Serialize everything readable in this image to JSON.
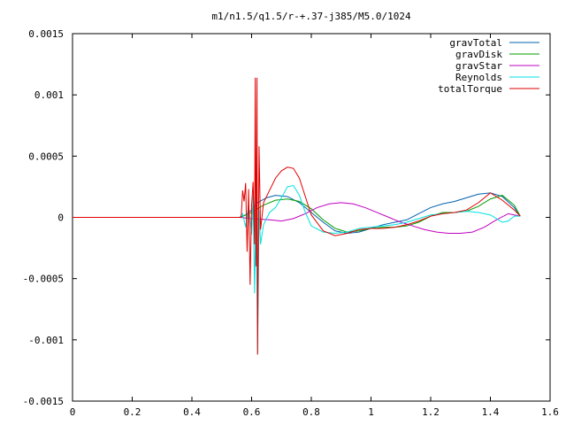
{
  "chart_data": {
    "type": "line",
    "title": "m1/n1.5/q1.5/r-+.37-j385/M5.0/1024",
    "xlabel": "",
    "ylabel": "",
    "xlim": [
      0,
      1.6
    ],
    "ylim": [
      -0.0015,
      0.0015
    ],
    "xticks": [
      0,
      0.2,
      0.4,
      0.6,
      0.8,
      1.0,
      1.2,
      1.4,
      1.6
    ],
    "xtick_labels": [
      "0",
      "0.2",
      "0.4",
      "0.6",
      "0.8",
      "1",
      "1.2",
      "1.4",
      "1.6"
    ],
    "yticks": [
      -0.0015,
      -0.001,
      -0.0005,
      0,
      0.0005,
      0.001,
      0.0015
    ],
    "ytick_labels": [
      "-0.0015",
      "-0.001",
      "-0.0005",
      "0",
      "0.0005",
      "0.001",
      "0.0015"
    ],
    "grid": false,
    "legend_position": "top-right",
    "series": [
      {
        "name": "gravTotal",
        "color": "#0060ad",
        "points": [
          [
            0,
            0
          ],
          [
            0.56,
            0
          ],
          [
            0.58,
            2e-05
          ],
          [
            0.6,
            6e-05
          ],
          [
            0.62,
            0.00012
          ],
          [
            0.65,
            0.00016
          ],
          [
            0.68,
            0.00018
          ],
          [
            0.72,
            0.00017
          ],
          [
            0.76,
            0.00012
          ],
          [
            0.8,
            4e-05
          ],
          [
            0.84,
            -4e-05
          ],
          [
            0.88,
            -0.00011
          ],
          [
            0.92,
            -0.00013
          ],
          [
            0.96,
            -0.00012
          ],
          [
            1.0,
            -9e-05
          ],
          [
            1.04,
            -6e-05
          ],
          [
            1.08,
            -4e-05
          ],
          [
            1.12,
            -2e-05
          ],
          [
            1.16,
            3e-05
          ],
          [
            1.2,
            8e-05
          ],
          [
            1.24,
            0.00011
          ],
          [
            1.28,
            0.00013
          ],
          [
            1.32,
            0.00016
          ],
          [
            1.36,
            0.00019
          ],
          [
            1.4,
            0.0002
          ],
          [
            1.44,
            0.00017
          ],
          [
            1.48,
            8e-05
          ],
          [
            1.5,
            1e-05
          ]
        ]
      },
      {
        "name": "gravDisk",
        "color": "#009e00",
        "points": [
          [
            0,
            0
          ],
          [
            0.56,
            0
          ],
          [
            0.6,
            4e-05
          ],
          [
            0.64,
            0.0001
          ],
          [
            0.68,
            0.00014
          ],
          [
            0.72,
            0.00015
          ],
          [
            0.76,
            0.00013
          ],
          [
            0.8,
            7e-05
          ],
          [
            0.84,
            -2e-05
          ],
          [
            0.88,
            -9e-05
          ],
          [
            0.92,
            -0.00012
          ],
          [
            0.96,
            -0.00011
          ],
          [
            1.0,
            -9e-05
          ],
          [
            1.04,
            -8e-05
          ],
          [
            1.08,
            -8e-05
          ],
          [
            1.12,
            -7e-05
          ],
          [
            1.16,
            -4e-05
          ],
          [
            1.2,
            1e-05
          ],
          [
            1.24,
            4e-05
          ],
          [
            1.28,
            4e-05
          ],
          [
            1.32,
            5e-05
          ],
          [
            1.36,
            9e-05
          ],
          [
            1.4,
            0.00015
          ],
          [
            1.44,
            0.00018
          ],
          [
            1.48,
            0.0001
          ],
          [
            1.5,
            1e-05
          ]
        ]
      },
      {
        "name": "gravStar",
        "color": "#c000c0",
        "points": [
          [
            0,
            0
          ],
          [
            0.56,
            0
          ],
          [
            0.6,
            -1e-05
          ],
          [
            0.66,
            -2e-05
          ],
          [
            0.7,
            -3e-05
          ],
          [
            0.74,
            -1e-05
          ],
          [
            0.78,
            3e-05
          ],
          [
            0.82,
            8e-05
          ],
          [
            0.86,
            0.00011
          ],
          [
            0.9,
            0.00012
          ],
          [
            0.94,
            0.00011
          ],
          [
            0.98,
            8e-05
          ],
          [
            1.02,
            4e-05
          ],
          [
            1.06,
            0
          ],
          [
            1.1,
            -4e-05
          ],
          [
            1.14,
            -7e-05
          ],
          [
            1.18,
            -0.0001
          ],
          [
            1.22,
            -0.00012
          ],
          [
            1.26,
            -0.00013
          ],
          [
            1.3,
            -0.00013
          ],
          [
            1.34,
            -0.00012
          ],
          [
            1.38,
            -8e-05
          ],
          [
            1.42,
            -2e-05
          ],
          [
            1.46,
            3e-05
          ],
          [
            1.5,
            1e-05
          ]
        ]
      },
      {
        "name": "Reynolds",
        "color": "#00e0e0",
        "points": [
          [
            0,
            0
          ],
          [
            0.56,
            0
          ],
          [
            0.57,
            3e-05
          ],
          [
            0.58,
            -8e-05
          ],
          [
            0.59,
            0.0001
          ],
          [
            0.6,
            -0.00014
          ],
          [
            0.605,
            0.00018
          ],
          [
            0.61,
            -0.00062
          ],
          [
            0.615,
            0.0002
          ],
          [
            0.62,
            -0.00112
          ],
          [
            0.625,
            6e-05
          ],
          [
            0.63,
            -0.00022
          ],
          [
            0.64,
            -6e-05
          ],
          [
            0.66,
            4e-05
          ],
          [
            0.68,
            8e-05
          ],
          [
            0.7,
            0.00016
          ],
          [
            0.72,
            0.00025
          ],
          [
            0.74,
            0.00026
          ],
          [
            0.76,
            0.00018
          ],
          [
            0.78,
            4e-05
          ],
          [
            0.8,
            -7e-05
          ],
          [
            0.84,
            -0.00012
          ],
          [
            0.88,
            -0.00013
          ],
          [
            0.92,
            -0.00012
          ],
          [
            0.96,
            -9e-05
          ],
          [
            1.0,
            -8e-05
          ],
          [
            1.04,
            -7e-05
          ],
          [
            1.08,
            -6e-05
          ],
          [
            1.12,
            -4e-05
          ],
          [
            1.16,
            -1e-05
          ],
          [
            1.2,
            2e-05
          ],
          [
            1.24,
            3e-05
          ],
          [
            1.28,
            4e-05
          ],
          [
            1.32,
            5e-05
          ],
          [
            1.36,
            4e-05
          ],
          [
            1.4,
            2e-05
          ],
          [
            1.44,
            -4e-05
          ],
          [
            1.46,
            -3e-05
          ],
          [
            1.48,
            1e-05
          ],
          [
            1.5,
            1e-05
          ]
        ]
      },
      {
        "name": "totalTorque",
        "color": "#e00000",
        "points": [
          [
            0,
            0
          ],
          [
            0.565,
            0
          ],
          [
            0.57,
            0.00022
          ],
          [
            0.575,
            0.00013
          ],
          [
            0.58,
            0.00028
          ],
          [
            0.585,
            -0.00028
          ],
          [
            0.59,
            0.00023
          ],
          [
            0.595,
            -0.00055
          ],
          [
            0.6,
            0.0001
          ],
          [
            0.605,
            0.00029
          ],
          [
            0.61,
            -0.00022
          ],
          [
            0.612,
            0.00114
          ],
          [
            0.615,
            -0.0004
          ],
          [
            0.618,
            0.00114
          ],
          [
            0.62,
            -0.00112
          ],
          [
            0.625,
            0.00058
          ],
          [
            0.63,
            -0.0001
          ],
          [
            0.64,
            0.00012
          ],
          [
            0.66,
            0.00022
          ],
          [
            0.68,
            0.00032
          ],
          [
            0.7,
            0.00038
          ],
          [
            0.72,
            0.00041
          ],
          [
            0.74,
            0.0004
          ],
          [
            0.76,
            0.00032
          ],
          [
            0.78,
            0.00017
          ],
          [
            0.8,
            2e-05
          ],
          [
            0.84,
            -0.00011
          ],
          [
            0.88,
            -0.00015
          ],
          [
            0.92,
            -0.00013
          ],
          [
            0.96,
            -0.0001
          ],
          [
            1.0,
            -9e-05
          ],
          [
            1.04,
            -9e-05
          ],
          [
            1.08,
            -8e-05
          ],
          [
            1.12,
            -6e-05
          ],
          [
            1.16,
            -3e-05
          ],
          [
            1.2,
            1e-05
          ],
          [
            1.24,
            3e-05
          ],
          [
            1.28,
            4e-05
          ],
          [
            1.32,
            6e-05
          ],
          [
            1.36,
            0.00012
          ],
          [
            1.4,
            0.0002
          ],
          [
            1.44,
            0.00014
          ],
          [
            1.48,
            6e-05
          ],
          [
            1.5,
            1e-05
          ]
        ]
      }
    ]
  }
}
